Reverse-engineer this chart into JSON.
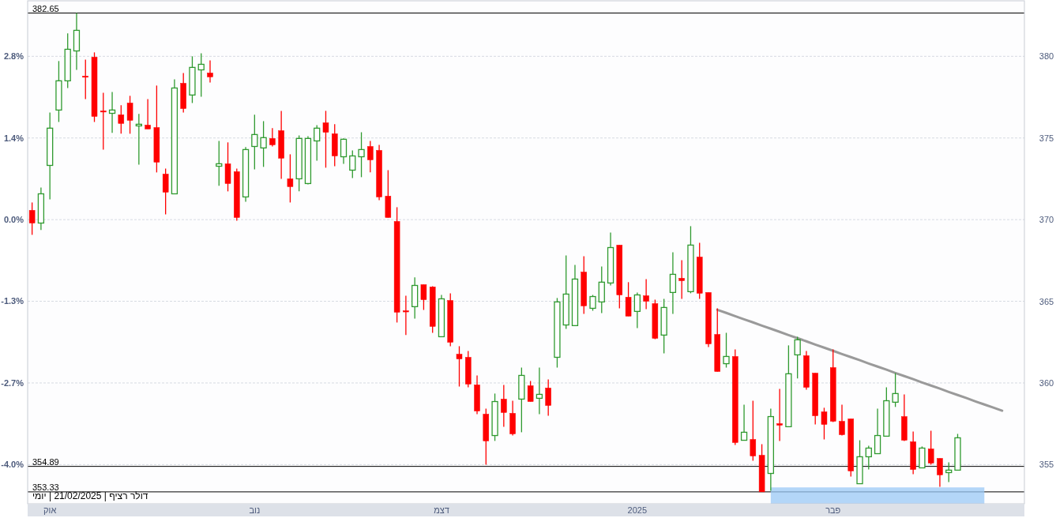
{
  "chart_data": {
    "type": "candlestick",
    "categories": [
      null,
      null,
      "אוק",
      null,
      null,
      null,
      null,
      null,
      null,
      null,
      null,
      null,
      null,
      null,
      null,
      null,
      null,
      null,
      null,
      null,
      null,
      null,
      null,
      null,
      null,
      "נוב",
      null,
      null,
      null,
      null,
      null,
      null,
      null,
      null,
      null,
      null,
      null,
      null,
      null,
      null,
      null,
      null,
      null,
      null,
      null,
      null,
      "דצמ",
      null,
      null,
      null,
      null,
      null,
      null,
      null,
      null,
      null,
      null,
      null,
      null,
      null,
      null,
      null,
      null,
      null,
      null,
      null,
      null,
      null,
      "2025",
      null,
      null,
      null,
      null,
      null,
      null,
      null,
      null,
      null,
      null,
      null,
      null,
      null,
      null,
      null,
      null,
      null,
      null,
      null,
      null,
      null,
      "פבר",
      null,
      null,
      null,
      null,
      null,
      null,
      null,
      null,
      null,
      null,
      null,
      null,
      null,
      null,
      null,
      null,
      null,
      null,
      null,
      null,
      null
    ],
    "ohlc": [
      [
        370.57,
        371.05,
        369.07,
        369.79
      ],
      [
        369.79,
        371.97,
        369.36,
        371.58
      ],
      [
        373.32,
        376.56,
        371.24,
        375.6
      ],
      [
        376.71,
        379.71,
        375.98,
        378.5
      ],
      [
        378.5,
        381.4,
        378.06,
        380.43
      ],
      [
        380.33,
        382.65,
        379.17,
        381.59
      ],
      [
        378.79,
        379.8,
        377.38,
        378.74
      ],
      [
        379.95,
        380.24,
        375.98,
        376.32
      ],
      [
        376.66,
        377.77,
        374.29,
        376.61
      ],
      [
        376.51,
        377.82,
        375.31,
        376.71
      ],
      [
        376.42,
        377.0,
        375.26,
        375.89
      ],
      [
        377.14,
        377.58,
        375.26,
        376.08
      ],
      [
        375.74,
        376.47,
        373.37,
        375.84
      ],
      [
        375.79,
        377.38,
        375.55,
        375.55
      ],
      [
        375.64,
        378.21,
        372.89,
        373.52
      ],
      [
        372.79,
        373.13,
        370.32,
        371.68
      ],
      [
        371.58,
        378.59,
        371.58,
        378.06
      ],
      [
        378.35,
        378.98,
        376.56,
        376.8
      ],
      [
        377.63,
        380.0,
        377.14,
        379.32
      ],
      [
        379.17,
        380.19,
        377.53,
        379.51
      ],
      [
        378.98,
        379.75,
        378.4,
        378.74
      ],
      [
        373.27,
        374.82,
        372.07,
        373.42
      ],
      [
        373.42,
        374.73,
        371.73,
        372.21
      ],
      [
        372.94,
        373.13,
        369.94,
        370.13
      ],
      [
        371.39,
        374.44,
        371.1,
        374.29
      ],
      [
        374.48,
        376.42,
        373.08,
        375.21
      ],
      [
        374.39,
        376.03,
        373.23,
        375.02
      ],
      [
        374.97,
        375.6,
        374.48,
        374.58
      ],
      [
        375.45,
        376.66,
        372.5,
        373.76
      ],
      [
        372.5,
        374.0,
        371.05,
        372.02
      ],
      [
        372.5,
        375.16,
        371.73,
        374.97
      ],
      [
        372.21,
        375.11,
        372.16,
        374.97
      ],
      [
        374.82,
        375.79,
        373.61,
        375.6
      ],
      [
        375.93,
        376.66,
        373.18,
        375.35
      ],
      [
        375.26,
        375.84,
        373.27,
        373.9
      ],
      [
        373.85,
        374.97,
        373.42,
        374.92
      ],
      [
        373.03,
        374.24,
        372.55,
        373.9
      ],
      [
        373.85,
        375.35,
        372.6,
        374.29
      ],
      [
        374.48,
        374.82,
        372.89,
        373.66
      ],
      [
        374.24,
        374.58,
        371.19,
        371.39
      ],
      [
        371.44,
        373.03,
        370.13,
        370.13
      ],
      [
        369.89,
        370.76,
        363.7,
        364.33
      ],
      [
        364.42,
        365.34,
        362.93,
        364.38
      ],
      [
        364.67,
        366.46,
        363.94,
        365.97
      ],
      [
        366.02,
        366.02,
        364.47,
        365.1
      ],
      [
        365.88,
        365.92,
        363.07,
        363.46
      ],
      [
        362.83,
        365.39,
        362.83,
        365.15
      ],
      [
        365.05,
        365.49,
        362.25,
        362.49
      ],
      [
        361.76,
        362.25,
        359.78,
        361.47
      ],
      [
        361.57,
        361.96,
        359.73,
        359.93
      ],
      [
        359.88,
        360.46,
        358.09,
        358.28
      ],
      [
        358.09,
        358.43,
        354.99,
        356.45
      ],
      [
        356.78,
        359.35,
        356.45,
        358.86
      ],
      [
        359.01,
        359.88,
        357.32,
        358.19
      ],
      [
        358.14,
        358.91,
        356.78,
        356.88
      ],
      [
        359.01,
        360.94,
        356.98,
        360.46
      ],
      [
        359.83,
        360.12,
        358.86,
        358.86
      ],
      [
        359.06,
        360.94,
        358.09,
        359.3
      ],
      [
        359.69,
        360.22,
        357.99,
        358.62
      ],
      [
        361.57,
        365.2,
        360.94,
        364.96
      ],
      [
        363.55,
        367.81,
        363.31,
        365.44
      ],
      [
        363.51,
        367.23,
        363.51,
        366.36
      ],
      [
        366.79,
        367.76,
        364.23,
        364.72
      ],
      [
        364.57,
        365.39,
        364.42,
        365.29
      ],
      [
        364.96,
        367.13,
        364.28,
        366.17
      ],
      [
        366.12,
        369.21,
        365.97,
        368.29
      ],
      [
        368.44,
        368.44,
        364.57,
        365.39
      ],
      [
        365.25,
        366.17,
        364.09,
        364.09
      ],
      [
        364.38,
        365.54,
        363.36,
        365.39
      ],
      [
        365.34,
        366.36,
        364.52,
        365.0
      ],
      [
        364.86,
        365.1,
        362.68,
        362.73
      ],
      [
        362.93,
        365.15,
        361.81,
        364.62
      ],
      [
        365.54,
        368.0,
        364.23,
        366.65
      ],
      [
        366.41,
        367.52,
        365.15,
        366.26
      ],
      [
        365.59,
        369.6,
        365.49,
        368.44
      ],
      [
        367.71,
        368.58,
        365.15,
        365.49
      ],
      [
        365.54,
        365.54,
        362.2,
        362.39
      ],
      [
        362.97,
        364.57,
        360.7,
        360.7
      ],
      [
        361.18,
        363.07,
        360.94,
        361.62
      ],
      [
        361.62,
        362.05,
        356.2,
        356.35
      ],
      [
        356.49,
        358.67,
        356.49,
        356.98
      ],
      [
        356.54,
        358.91,
        355.24,
        355.53
      ],
      [
        355.57,
        356.25,
        353.33,
        353.33
      ],
      [
        354.46,
        358.43,
        353.4,
        357.94
      ],
      [
        357.51,
        359.64,
        356.45,
        357.41
      ],
      [
        357.32,
        362.3,
        357.32,
        360.56
      ],
      [
        361.72,
        362.83,
        360.27,
        362.64
      ],
      [
        361.67,
        361.96,
        359.59,
        359.73
      ],
      [
        360.6,
        360.6,
        357.46,
        357.99
      ],
      [
        358.23,
        358.48,
        356.54,
        357.46
      ],
      [
        360.94,
        362.05,
        357.61,
        357.65
      ],
      [
        357.65,
        358.67,
        356.78,
        356.83
      ],
      [
        357.8,
        357.8,
        354.27,
        354.61
      ],
      [
        353.83,
        356.49,
        353.83,
        355.48
      ],
      [
        355.48,
        356.15,
        354.7,
        356.01
      ],
      [
        355.67,
        358.43,
        355.67,
        356.78
      ],
      [
        356.74,
        359.73,
        356.74,
        358.91
      ],
      [
        358.82,
        360.6,
        358.53,
        359.35
      ],
      [
        357.94,
        359.3,
        356.45,
        356.49
      ],
      [
        356.4,
        357.03,
        354.41,
        354.7
      ],
      [
        354.8,
        356.11,
        354.8,
        356.01
      ],
      [
        355.96,
        357.07,
        354.99,
        355.09
      ],
      [
        355.38,
        355.38,
        353.64,
        354.37
      ],
      [
        354.51,
        355.14,
        353.93,
        354.66
      ],
      [
        354.66,
        356.88,
        354.66,
        356.64
      ],
      null,
      null,
      null,
      null,
      null,
      null,
      null
    ],
    "colors": [
      "#ff0000",
      "#2f9a2f",
      "#2f9a2f",
      "#2f9a2f",
      "#2f9a2f",
      "#2f9a2f",
      "#ff0000",
      "#ff0000",
      "#ff0000",
      "#2f9a2f",
      "#ff0000",
      "#ff0000",
      "#2f9a2f",
      "#ff0000",
      "#ff0000",
      "#ff0000",
      "#2f9a2f",
      "#ff0000",
      "#2f9a2f",
      "#2f9a2f",
      "#ff0000",
      "#2f9a2f",
      "#ff0000",
      "#ff0000",
      "#2f9a2f",
      "#2f9a2f",
      "#2f9a2f",
      "#ff0000",
      "#ff0000",
      "#ff0000",
      "#2f9a2f",
      "#2f9a2f",
      "#2f9a2f",
      "#ff0000",
      "#ff0000",
      "#2f9a2f",
      "#2f9a2f",
      "#2f9a2f",
      "#ff0000",
      "#ff0000",
      "#ff0000",
      "#ff0000",
      "#ff0000",
      "#2f9a2f",
      "#ff0000",
      "#ff0000",
      "#2f9a2f",
      "#ff0000",
      "#ff0000",
      "#ff0000",
      "#ff0000",
      "#ff0000",
      "#2f9a2f",
      "#ff0000",
      "#ff0000",
      "#2f9a2f",
      "#ff0000",
      "#2f9a2f",
      "#ff0000",
      "#2f9a2f",
      "#2f9a2f",
      "#2f9a2f",
      "#ff0000",
      "#2f9a2f",
      "#2f9a2f",
      "#2f9a2f",
      "#ff0000",
      "#ff0000",
      "#2f9a2f",
      "#ff0000",
      "#ff0000",
      "#2f9a2f",
      "#2f9a2f",
      "#ff0000",
      "#2f9a2f",
      "#ff0000",
      "#ff0000",
      "#ff0000",
      "#2f9a2f",
      "#ff0000",
      "#2f9a2f",
      "#ff0000",
      "#ff0000",
      "#2f9a2f",
      "#ff0000",
      "#2f9a2f",
      "#2f9a2f",
      "#ff0000",
      "#ff0000",
      "#ff0000",
      "#ff0000",
      "#ff0000",
      "#ff0000",
      "#2f9a2f",
      "#2f9a2f",
      "#2f9a2f",
      "#2f9a2f",
      "#2f9a2f",
      "#ff0000",
      "#ff0000",
      "#2f9a2f",
      "#ff0000",
      "#ff0000",
      "#2f9a2f",
      "#2f9a2f",
      null,
      null,
      null,
      null,
      null,
      null,
      null
    ],
    "ylim": [
      352.6,
      383.4
    ],
    "yticks": [
      355,
      360,
      365,
      370,
      375,
      380
    ],
    "y2lim": [
      -4.66,
      3.67
    ],
    "y2ticks": [
      {
        "value": -4.01,
        "label": "-4.0%"
      },
      {
        "value": -2.66,
        "label": "-2.7%"
      },
      {
        "value": -1.3,
        "label": "-1.3%"
      },
      {
        "value": 0.05,
        "label": "0.0%"
      },
      {
        "value": 1.4,
        "label": "1.4%"
      },
      {
        "value": 2.75,
        "label": "2.8%"
      }
    ],
    "grid": "y",
    "ref_lines": [
      {
        "axis": "y",
        "value": 382.65,
        "label": "382.65",
        "color": "#000000"
      },
      {
        "axis": "y",
        "value": 354.89,
        "label": "354.89",
        "color": "#000000"
      },
      {
        "axis": "y",
        "value": 353.33,
        "label": "353.33",
        "color": "#000000"
      }
    ],
    "series": [
      {
        "type": "line",
        "color": "#9a9a9a",
        "values": [
          null,
          null,
          null,
          null,
          null,
          null,
          null,
          null,
          null,
          null,
          null,
          null,
          null,
          null,
          null,
          null,
          null,
          null,
          null,
          null,
          null,
          null,
          null,
          null,
          null,
          null,
          null,
          null,
          null,
          null,
          null,
          null,
          null,
          null,
          null,
          null,
          null,
          null,
          null,
          null,
          null,
          null,
          null,
          null,
          null,
          null,
          null,
          null,
          null,
          null,
          null,
          null,
          null,
          null,
          null,
          null,
          null,
          null,
          null,
          null,
          null,
          null,
          null,
          null,
          null,
          null,
          null,
          null,
          null,
          null,
          null,
          null,
          null,
          null,
          null,
          null,
          null,
          364.48,
          364.29,
          364.09,
          363.9,
          363.71,
          363.51,
          363.32,
          363.13,
          362.93,
          362.74,
          362.55,
          362.35,
          362.16,
          361.97,
          361.77,
          361.58,
          361.39,
          361.19,
          361.0,
          360.81,
          360.61,
          360.42,
          360.23,
          360.03,
          359.84,
          359.65,
          359.45,
          359.26,
          359.07,
          358.87,
          358.68,
          358.49,
          358.3,
          null,
          null
        ]
      },
      {
        "type": "area",
        "color": "#99c8f5",
        "values": [
          null,
          null,
          null,
          null,
          null,
          null,
          null,
          null,
          null,
          null,
          null,
          null,
          null,
          null,
          null,
          null,
          null,
          null,
          null,
          null,
          null,
          null,
          null,
          null,
          null,
          null,
          null,
          null,
          null,
          null,
          null,
          null,
          null,
          null,
          null,
          null,
          null,
          null,
          null,
          null,
          null,
          null,
          null,
          null,
          null,
          null,
          null,
          null,
          null,
          null,
          null,
          null,
          null,
          null,
          null,
          null,
          null,
          null,
          null,
          null,
          null,
          null,
          null,
          null,
          null,
          null,
          null,
          null,
          null,
          null,
          null,
          null,
          null,
          null,
          null,
          null,
          null,
          null,
          null,
          null,
          null,
          null,
          null,
          353.6,
          353.6,
          353.6,
          353.6,
          353.6,
          353.6,
          353.6,
          353.6,
          353.6,
          353.6,
          353.6,
          353.6,
          353.6,
          353.6,
          353.6,
          353.6,
          353.6,
          353.6,
          353.6,
          353.6,
          353.6,
          353.6,
          353.6,
          353.6,
          353.6,
          null,
          null,
          null,
          null
        ]
      }
    ],
    "annotations": [
      "דולר רציף | 21/02/2025 | יומי"
    ]
  }
}
